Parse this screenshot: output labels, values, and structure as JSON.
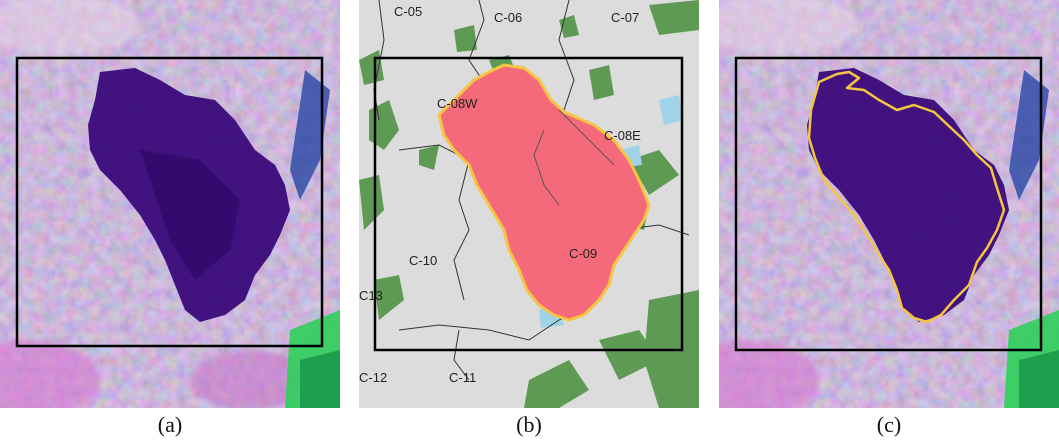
{
  "figure": {
    "captions": [
      "(a)",
      "(b)",
      "(c)"
    ],
    "map_labels": {
      "c05": "C-05",
      "c06": "C-06",
      "c07": "C-07",
      "c08w": "C-08W",
      "c08e": "C-08E",
      "c09": "C-09",
      "c10": "C-10",
      "c13": "C13",
      "c12": "C-12",
      "c11": "C-11"
    },
    "colors": {
      "satellite_background": "#b89ad0",
      "burned_area": "#3a0a7a",
      "burn_perimeter": "#f5c542",
      "burned_fill_map": "#f56a7a",
      "map_background": "#dcdcdc",
      "vegetation": "#5f9a55",
      "water": "#0b2ea8",
      "green_patch": "#2fcf5a",
      "box_outline": "#000000"
    }
  }
}
